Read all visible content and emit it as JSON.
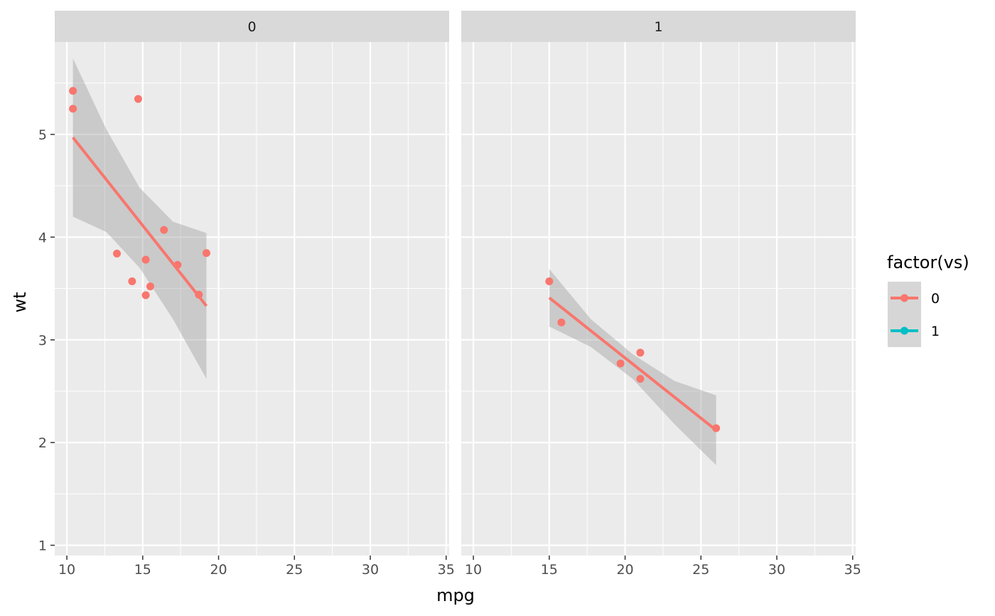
{
  "chart_data": {
    "type": "scatter",
    "xlabel": "mpg",
    "ylabel": "wt",
    "xlim": [
      9.2,
      35.2
    ],
    "ylim": [
      0.9,
      5.9
    ],
    "x_ticks": [
      10,
      15,
      20,
      25,
      30,
      35
    ],
    "y_ticks": [
      1,
      2,
      3,
      4,
      5
    ],
    "grid": true,
    "legend": {
      "title": "factor(vs)",
      "position": "right",
      "entries": [
        {
          "label": "0",
          "color": "#F8766D"
        },
        {
          "label": "1",
          "color": "#00BFC4"
        }
      ]
    },
    "facets": [
      {
        "label": "0",
        "points": [
          {
            "x": 10.4,
            "y": 5.424
          },
          {
            "x": 10.4,
            "y": 5.25
          },
          {
            "x": 14.7,
            "y": 5.345
          },
          {
            "x": 16.4,
            "y": 4.07
          },
          {
            "x": 13.3,
            "y": 3.84
          },
          {
            "x": 19.2,
            "y": 3.845
          },
          {
            "x": 15.2,
            "y": 3.78
          },
          {
            "x": 17.3,
            "y": 3.73
          },
          {
            "x": 14.3,
            "y": 3.57
          },
          {
            "x": 15.5,
            "y": 3.52
          },
          {
            "x": 15.2,
            "y": 3.435
          },
          {
            "x": 18.7,
            "y": 3.44
          }
        ],
        "fit": {
          "x": [
            10.4,
            19.2
          ],
          "y": [
            4.97,
            3.33
          ]
        },
        "band": {
          "x": [
            10.4,
            12.6,
            14.8,
            17.0,
            19.2
          ],
          "lower": [
            4.2,
            4.05,
            3.7,
            3.2,
            2.62
          ],
          "upper": [
            5.74,
            5.05,
            4.48,
            4.15,
            4.04
          ]
        }
      },
      {
        "label": "1",
        "points": [
          {
            "x": 15.0,
            "y": 3.57
          },
          {
            "x": 15.8,
            "y": 3.17
          },
          {
            "x": 19.7,
            "y": 2.77
          },
          {
            "x": 21.0,
            "y": 2.875
          },
          {
            "x": 21.0,
            "y": 2.62
          },
          {
            "x": 26.0,
            "y": 2.14
          }
        ],
        "fit": {
          "x": [
            15.0,
            26.0
          ],
          "y": [
            3.41,
            2.12
          ]
        },
        "band": {
          "x": [
            15.0,
            17.75,
            20.5,
            23.25,
            26.0
          ],
          "lower": [
            3.13,
            2.93,
            2.62,
            2.18,
            1.78
          ],
          "upper": [
            3.69,
            3.2,
            2.86,
            2.6,
            2.46
          ]
        }
      }
    ],
    "colors": {
      "point": "#F8766D",
      "line": "#F8766D",
      "band": "#999999",
      "panel_bg": "#EBEBEB",
      "strip_bg": "#D9D9D9",
      "grid": "#FFFFFF",
      "axis_tick": "#333333"
    }
  }
}
